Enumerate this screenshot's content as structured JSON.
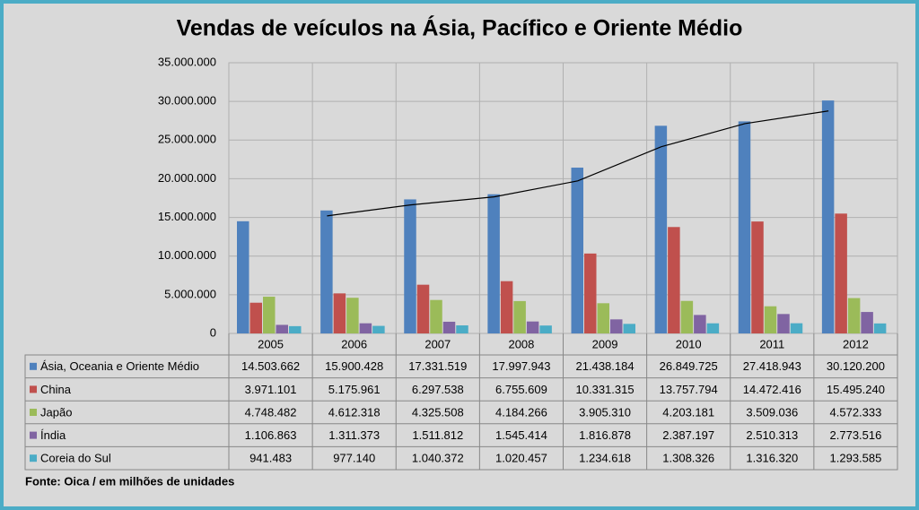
{
  "chart_data": {
    "type": "bar",
    "title": "Vendas de veículos na Ásia, Pacífico e Oriente Médio",
    "footnote": "Fonte: Oica / em milhões de unidades",
    "categories": [
      "2005",
      "2006",
      "2007",
      "2008",
      "2009",
      "2010",
      "2011",
      "2012"
    ],
    "series": [
      {
        "name": "Ásia, Oceania e Oriente Médio",
        "color": "#4f81bd",
        "values": [
          14503662,
          15900428,
          17331519,
          17997943,
          21438184,
          26849725,
          27418943,
          30120200
        ],
        "value_labels": [
          "14.503.662",
          "15.900.428",
          "17.331.519",
          "17.997.943",
          "21.438.184",
          "26.849.725",
          "27.418.943",
          "30.120.200"
        ]
      },
      {
        "name": "China",
        "color": "#c0504d",
        "values": [
          3971101,
          5175961,
          6297538,
          6755609,
          10331315,
          13757794,
          14472416,
          15495240
        ],
        "value_labels": [
          "3.971.101",
          "5.175.961",
          "6.297.538",
          "6.755.609",
          "10.331.315",
          "13.757.794",
          "14.472.416",
          "15.495.240"
        ]
      },
      {
        "name": "Japão",
        "color": "#9bbb59",
        "values": [
          4748482,
          4612318,
          4325508,
          4184266,
          3905310,
          4203181,
          3509036,
          4572333
        ],
        "value_labels": [
          "4.748.482",
          "4.612.318",
          "4.325.508",
          "4.184.266",
          "3.905.310",
          "4.203.181",
          "3.509.036",
          "4.572.333"
        ]
      },
      {
        "name": "Índia",
        "color": "#8064a2",
        "values": [
          1106863,
          1311373,
          1511812,
          1545414,
          1816878,
          2387197,
          2510313,
          2773516
        ],
        "value_labels": [
          "1.106.863",
          "1.311.373",
          "1.511.812",
          "1.545.414",
          "1.816.878",
          "2.387.197",
          "2.510.313",
          "2.773.516"
        ]
      },
      {
        "name": "Coreia do Sul",
        "color": "#4bacc6",
        "values": [
          941483,
          977140,
          1040372,
          1020457,
          1234618,
          1308326,
          1316320,
          1293585
        ],
        "value_labels": [
          "941.483",
          "977.140",
          "1.040.372",
          "1.020.457",
          "1.234.618",
          "1.308.326",
          "1.316.320",
          "1.293.585"
        ]
      }
    ],
    "trendline": {
      "color": "#000000",
      "values": [
        null,
        15200000,
        16620000,
        17660000,
        19720000,
        24140000,
        27130000,
        28770000
      ]
    },
    "ylim": [
      0,
      35000000
    ],
    "yticks": [
      0,
      {
        "value": 5000000,
        "label": "5.000.000"
      },
      {
        "value": 10000000,
        "label": "10.000.000"
      },
      {
        "value": 15000000,
        "label": "15.000.000"
      },
      {
        "value": 20000000,
        "label": "20.000.000"
      },
      {
        "value": 25000000,
        "label": "25.000.000"
      },
      {
        "value": 30000000,
        "label": "30.000.000"
      },
      {
        "value": 35000000,
        "label": "35.000.000"
      }
    ],
    "grid": true
  }
}
